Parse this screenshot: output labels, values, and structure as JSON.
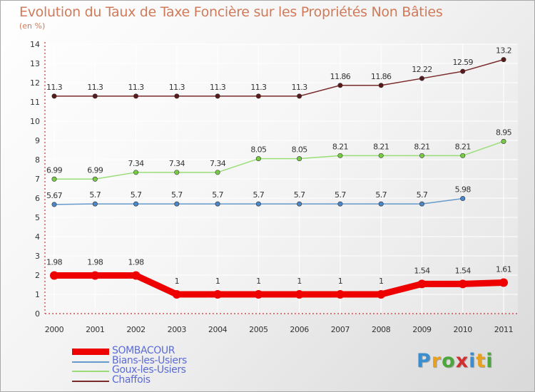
{
  "title": "Evolution du Taux de Taxe Foncière sur les Propriétés Non Bâties",
  "subtitle": "(en %)",
  "logo_text": "Proxiti",
  "colors": {
    "title": "#d07a5a",
    "axis": "#cc3333",
    "legend_text": "#5b6bd6"
  },
  "chart_data": {
    "type": "line",
    "x": [
      "2000",
      "2001",
      "2002",
      "2003",
      "2004",
      "2005",
      "2006",
      "2007",
      "2008",
      "2009",
      "2010",
      "2011"
    ],
    "ylim": [
      0,
      14
    ],
    "yticks": [
      0,
      1,
      2,
      3,
      4,
      5,
      6,
      7,
      8,
      9,
      10,
      11,
      12,
      13,
      14
    ],
    "grid": true,
    "legend_position": "bottom-left",
    "series": [
      {
        "name": "Chaffois",
        "color": "#7a2a2a",
        "marker": "#5a1a1a",
        "values": [
          11.3,
          11.3,
          11.3,
          11.3,
          11.3,
          11.3,
          11.3,
          11.86,
          11.86,
          12.22,
          12.59,
          13.2
        ],
        "labels": [
          "11.3",
          "11.3",
          "11.3",
          "11.3",
          "11.3",
          "11.3",
          "11.3",
          "11.86",
          "11.86",
          "12.22",
          "12.59",
          "13.2"
        ]
      },
      {
        "name": "Goux-les-Usiers",
        "color": "#99dd77",
        "marker": "#77cc44",
        "values": [
          6.99,
          6.99,
          7.34,
          7.34,
          7.34,
          8.05,
          8.05,
          8.21,
          8.21,
          8.21,
          8.21,
          8.95
        ],
        "labels": [
          "6.99",
          "6.99",
          "7.34",
          "7.34",
          "7.34",
          "8.05",
          "8.05",
          "8.21",
          "8.21",
          "8.21",
          "8.21",
          "8.95"
        ]
      },
      {
        "name": "Bians-les-Usiers",
        "color": "#6699cc",
        "marker": "#4a86c8",
        "values": [
          5.67,
          5.7,
          5.7,
          5.7,
          5.7,
          5.7,
          5.7,
          5.7,
          5.7,
          5.7,
          5.98,
          null
        ],
        "labels": [
          "5.67",
          "5.7",
          "5.7",
          "5.7",
          "5.7",
          "5.7",
          "5.7",
          "5.7",
          "5.7",
          "5.7",
          "5.98",
          ""
        ]
      },
      {
        "name": "SOMBACOUR",
        "color": "#ee0000",
        "marker": "#ee0000",
        "thick": true,
        "values": [
          1.98,
          1.98,
          1.98,
          1,
          1,
          1,
          1,
          1,
          1,
          1.54,
          1.54,
          1.61
        ],
        "labels": [
          "1.98",
          "1.98",
          "1.98",
          "1",
          "1",
          "1",
          "1",
          "1",
          "1",
          "1.54",
          "1.54",
          "1.61"
        ]
      }
    ]
  },
  "legend": [
    {
      "label": "SOMBACOUR",
      "color": "#ee0000",
      "thick": true
    },
    {
      "label": "Bians-les-Usiers",
      "color": "#6699cc",
      "thick": false
    },
    {
      "label": "Goux-les-Usiers",
      "color": "#99dd77",
      "thick": false
    },
    {
      "label": "Chaffois",
      "color": "#7a2a2a",
      "thick": false
    }
  ]
}
